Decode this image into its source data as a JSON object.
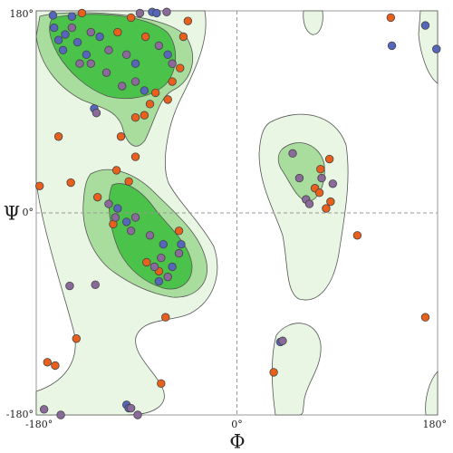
{
  "chart_data": {
    "type": "scatter",
    "x_label": "Φ",
    "y_label": "Ψ",
    "xlim": [
      -180,
      180
    ],
    "ylim": [
      -180,
      180
    ],
    "xticks": [
      {
        "value": -180,
        "label": "-180°"
      },
      {
        "value": 0,
        "label": "0°"
      },
      {
        "value": 180,
        "label": "180°"
      }
    ],
    "yticks": [
      {
        "value": -180,
        "label": "-180°"
      },
      {
        "value": 0,
        "label": "0°"
      },
      {
        "value": 180,
        "label": "180°"
      }
    ],
    "series": [
      {
        "color": "#e8601c",
        "x": [
          138,
          -44,
          83,
          108,
          169,
          -64,
          33,
          -68,
          -144,
          -170,
          -163,
          -177,
          -160,
          -149,
          -104,
          -108,
          -91,
          -91,
          -83,
          -62,
          -58,
          -78,
          -73,
          -48,
          -51,
          -139,
          75,
          70,
          74,
          84,
          80,
          -125,
          -97,
          -81,
          -52,
          -111,
          -70,
          -107,
          -82,
          -95
        ],
        "y": [
          174,
          171,
          48,
          -20,
          -93,
          -93,
          -142,
          -152,
          -112,
          -133,
          -136,
          24,
          68,
          27,
          68,
          38,
          50,
          85,
          87,
          101,
          117,
          97,
          107,
          157,
          129,
          178,
          39,
          22,
          18,
          10,
          4,
          14,
          28,
          -44,
          -16,
          -10,
          -52,
          161,
          157,
          174
        ]
      },
      {
        "color": "#5566bb",
        "x": [
          139,
          169,
          179,
          39,
          -128,
          -148,
          -165,
          -99,
          -97,
          -76,
          -72,
          -160,
          -154,
          -164,
          -143,
          -135,
          -156,
          -99,
          -107,
          -66,
          -58,
          -70,
          -50,
          -123,
          -91,
          -83,
          -62
        ],
        "y": [
          149,
          167,
          146,
          -115,
          93,
          175,
          176,
          -171,
          -174,
          179,
          178,
          154,
          159,
          165,
          152,
          141,
          145,
          -8,
          4,
          -28,
          -48,
          -61,
          -28,
          157,
          133,
          109,
          141
        ]
      },
      {
        "color": "#8a6a9a",
        "x": [
          -87,
          -63,
          -127,
          -150,
          -173,
          -158,
          -89,
          41,
          50,
          56,
          62,
          76,
          86,
          65,
          -115,
          -109,
          -91,
          -78,
          -68,
          -52,
          -74,
          -62,
          -95,
          -148,
          -131,
          -115,
          -99,
          -70,
          -58,
          -131,
          -117,
          -141,
          -103,
          -91,
          -126,
          -95
        ],
        "y": [
          178,
          179,
          -64,
          -65,
          -175,
          -180,
          -180,
          -114,
          53,
          31,
          12,
          31,
          26,
          8,
          8,
          -4,
          -4,
          -20,
          -40,
          -36,
          -48,
          -57,
          -16,
          165,
          161,
          145,
          141,
          149,
          133,
          133,
          125,
          133,
          113,
          117,
          89,
          -174
        ]
      }
    ]
  }
}
